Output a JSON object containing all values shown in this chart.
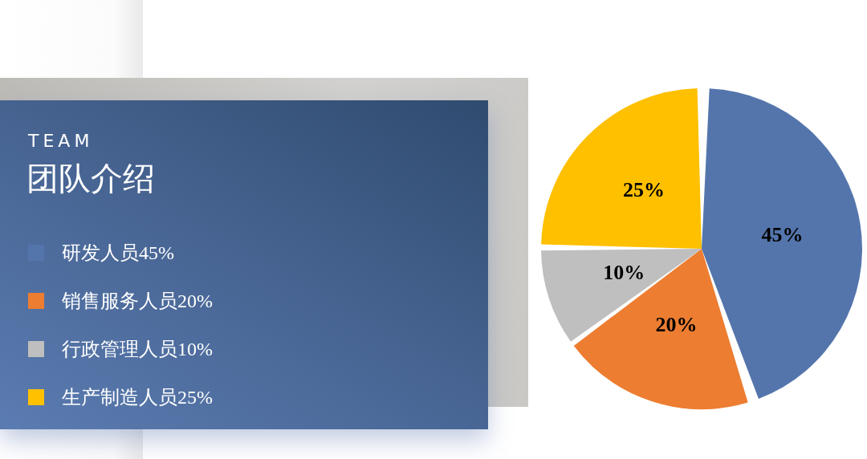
{
  "chart_data": {
    "type": "pie",
    "subtitle": "TEAM",
    "title": "团队介绍",
    "categories": [
      "研发人员",
      "销售服务人员",
      "行政管理人员",
      "生产制造人员"
    ],
    "values": [
      45,
      20,
      10,
      25
    ],
    "value_labels": [
      "45%",
      "20%",
      "10%",
      "25%"
    ],
    "colors": [
      "#5475ac",
      "#ed7d31",
      "#bfbfbf",
      "#ffc000"
    ],
    "legend": "left"
  }
}
